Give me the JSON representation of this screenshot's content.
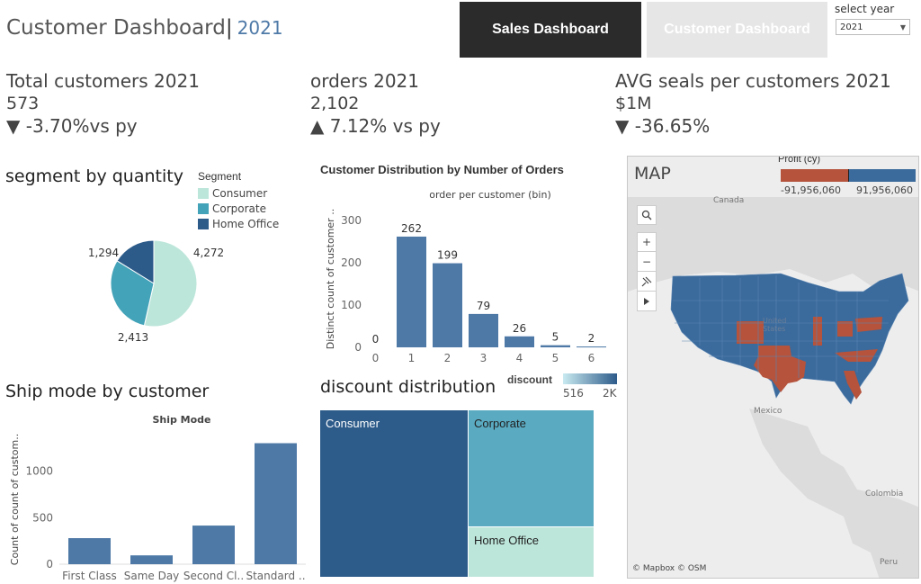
{
  "header": {
    "title": "Customer Dashboard",
    "separator": "|",
    "year": "2021"
  },
  "nav": {
    "sales_label": "Sales Dashboard",
    "customer_label": "Customer Dashboard"
  },
  "year_filter": {
    "label": "select year",
    "value": "2021"
  },
  "kpis": {
    "customers": {
      "label": "Total customers  2021",
      "value": "573",
      "arrow": "▼",
      "change": "-3.70%vs py"
    },
    "orders": {
      "label": "orders 2021",
      "value": "2,102",
      "arrow": "▲",
      "change": "7.12% vs py"
    },
    "avg_sales": {
      "label": "AVG seals per customers 2021",
      "value": "$1M",
      "arrow": "▼",
      "change": "-36.65%"
    }
  },
  "segment": {
    "title": "segment by quantity",
    "legend_title": "Segment",
    "colors": [
      "#bde6da",
      "#43a3b8",
      "#2c5b8a"
    ],
    "chart_data": {
      "type": "pie",
      "labels": [
        "Consumer",
        "Corporate",
        "Home Office"
      ],
      "values": [
        4272,
        2413,
        1294
      ],
      "value_labels": [
        "4,272",
        "2,413",
        "1,294"
      ]
    }
  },
  "distribution": {
    "title": "Customer Distribution by Number of Orders",
    "xlabel": "order per customer (bin)",
    "ylabel": "Distinct count of customer ..",
    "bar_color": "#4e79a7",
    "chart_data": {
      "type": "bar",
      "categories": [
        "0",
        "1",
        "2",
        "3",
        "4",
        "5",
        "6"
      ],
      "values": [
        0,
        262,
        199,
        79,
        26,
        5,
        2
      ],
      "yticks": [
        "0",
        "100",
        "200",
        "300"
      ],
      "ylim": [
        0,
        330
      ]
    }
  },
  "shipmode": {
    "title": "Ship mode by customer",
    "chart_title": "Ship Mode",
    "ylabel": "Count of count of custom..",
    "bar_color": "#4e79a7",
    "chart_data": {
      "type": "bar",
      "categories": [
        "First Class",
        "Same Day",
        "Second Cl..",
        "Standard .."
      ],
      "values": [
        280,
        95,
        415,
        1300
      ],
      "yticks": [
        "0",
        "500",
        "1000"
      ],
      "ylim": [
        0,
        1450
      ]
    }
  },
  "discount": {
    "title": "discount distribution",
    "legend_title": "discount",
    "legend_min": "516",
    "legend_max": "2K",
    "chart_data": {
      "type": "treemap",
      "labels": [
        "Consumer",
        "Corporate",
        "Home Office"
      ],
      "values": [
        2000,
        1200,
        516
      ],
      "colors": [
        "#2d5b8a",
        "#5aabc2",
        "#bde6da"
      ],
      "text_colors": [
        "#ffffff",
        "#222222",
        "#222222"
      ]
    }
  },
  "map": {
    "title": "MAP",
    "legend_title": "Profit (cy)",
    "legend_min": "-91,956,060",
    "legend_max": "91,956,060",
    "negative_color": "#b5533c",
    "positive_color": "#3b6a9c",
    "place_labels": [
      "Canada",
      "United States",
      "Mexico",
      "Colombia",
      "Peru"
    ],
    "attribution": "© Mapbox © OSM",
    "controls": [
      "search-icon",
      "zoom-in-icon",
      "zoom-out-icon",
      "pin-icon",
      "play-icon"
    ]
  }
}
